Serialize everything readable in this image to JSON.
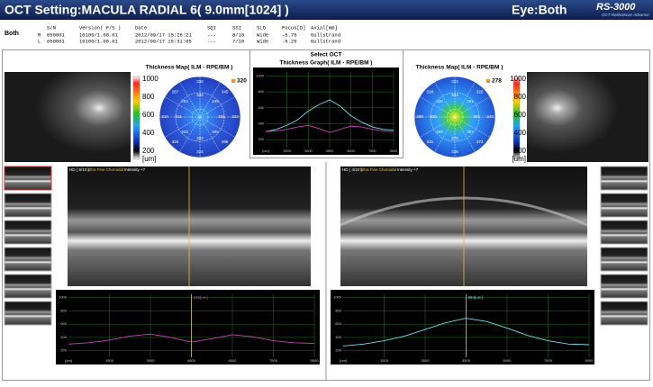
{
  "header": {
    "title": "OCT Setting:MACULA RADIAL 6( 9.0mm[1024] )",
    "eye": "Eye:Both",
    "logo": "RS-3000",
    "logo_sub": "OCT RetinaScan Advance"
  },
  "info": {
    "label": "Both",
    "columns": [
      "S/N",
      "Version( F/S )",
      "Date",
      "SQI",
      "SSI",
      "SLO",
      "Focus[D]",
      "Axial[mm]"
    ],
    "rows": [
      [
        "R",
        "650001",
        "10100/1.00.01",
        "2012/09/17 15:26:21",
        "---",
        "8/10",
        "Wide",
        "-6.75",
        "Gullstrand"
      ],
      [
        "L",
        "650001",
        "10100/1.00.01",
        "2012/09/17 15:31:05",
        "---",
        "7/10",
        "Wide",
        "-5.25",
        "Gullstrand"
      ]
    ]
  },
  "left_map": {
    "title": "Thickness Map( ILM - RPE/BM )",
    "center": "320",
    "scale_ticks": [
      1000,
      800,
      600,
      400,
      200
    ],
    "scale_unit": "[um]",
    "outer": [
      "336",
      "345",
      "323",
      "298",
      "324",
      "326",
      "310",
      "287"
    ],
    "inner": [
      "342",
      "349",
      "331",
      "305",
      "322",
      "320",
      "311",
      "293"
    ]
  },
  "right_map": {
    "title": "Thickness Map( ILM - RPE/BM )",
    "center": "278",
    "scale_ticks": [
      1000,
      800,
      600,
      400,
      200
    ],
    "scale_unit": "[um]",
    "outer": [
      "322",
      "325",
      "343",
      "373",
      "338",
      "331",
      "298",
      "328"
    ],
    "inner": [
      "344",
      "351",
      "367",
      "397",
      "370",
      "350",
      "315",
      "330"
    ]
  },
  "center_graph": {
    "heading": "Select OCT",
    "title": "Thickness Graph( ILM - RPE/BM )",
    "x_unit": "[um]",
    "xlim": [
      0,
      9000
    ],
    "xticks": [
      1500,
      3000,
      4500,
      6000,
      7500,
      9000
    ],
    "ylim": [
      100,
      1050
    ],
    "yticks": [
      200,
      400,
      600,
      800,
      1000
    ],
    "x": [
      0,
      750,
      1500,
      2250,
      3000,
      3750,
      4500,
      5250,
      6000,
      6750,
      7500,
      8250,
      9000
    ],
    "series": [
      {
        "color": "#6ee0f0",
        "values": [
          300,
          330,
          380,
          450,
          560,
          640,
          700,
          620,
          500,
          420,
          360,
          330,
          320
        ]
      },
      {
        "color": "#d040c0",
        "values": [
          300,
          310,
          330,
          360,
          380,
          340,
          290,
          330,
          370,
          360,
          330,
          310,
          300
        ]
      }
    ]
  },
  "left_scan": {
    "mode": "HD ( 6/10 )",
    "filter": "Ultra Fine Choroidal",
    "intensity": "Intensity +7"
  },
  "right_scan": {
    "mode": "HD ( 4/10 )",
    "filter": "Ultra Fine Choroidal",
    "intensity": "Intensity +7"
  },
  "left_graph": {
    "cursor_label": "315[um]",
    "x_unit": "[um]",
    "xlim": [
      0,
      9000
    ],
    "xticks": [
      1500,
      3000,
      4500,
      6000,
      7500,
      9000
    ],
    "ylim": [
      100,
      1050
    ],
    "yticks": [
      200,
      400,
      600,
      800,
      1000
    ],
    "x": [
      0,
      750,
      1500,
      2250,
      3000,
      3750,
      4500,
      5250,
      6000,
      6750,
      7500,
      8250,
      9000
    ],
    "series": [
      {
        "color": "#d040c0",
        "values": [
          300,
          320,
          360,
          420,
          450,
          400,
          330,
          380,
          440,
          410,
          350,
          320,
          310
        ]
      }
    ]
  },
  "right_graph": {
    "cursor_label": "694[um]",
    "x_unit": "[um]",
    "xlim": [
      0,
      9000
    ],
    "xticks": [
      1500,
      3000,
      4500,
      6000,
      7500,
      9000
    ],
    "ylim": [
      100,
      1050
    ],
    "yticks": [
      200,
      400,
      600,
      800,
      1000
    ],
    "x": [
      0,
      750,
      1500,
      2250,
      3000,
      3750,
      4500,
      5250,
      6000,
      6750,
      7500,
      8250,
      9000
    ],
    "series": [
      {
        "color": "#6ee0f0",
        "values": [
          270,
          300,
          350,
          420,
          520,
          620,
          690,
          640,
          540,
          430,
          350,
          300,
          290
        ]
      }
    ]
  }
}
